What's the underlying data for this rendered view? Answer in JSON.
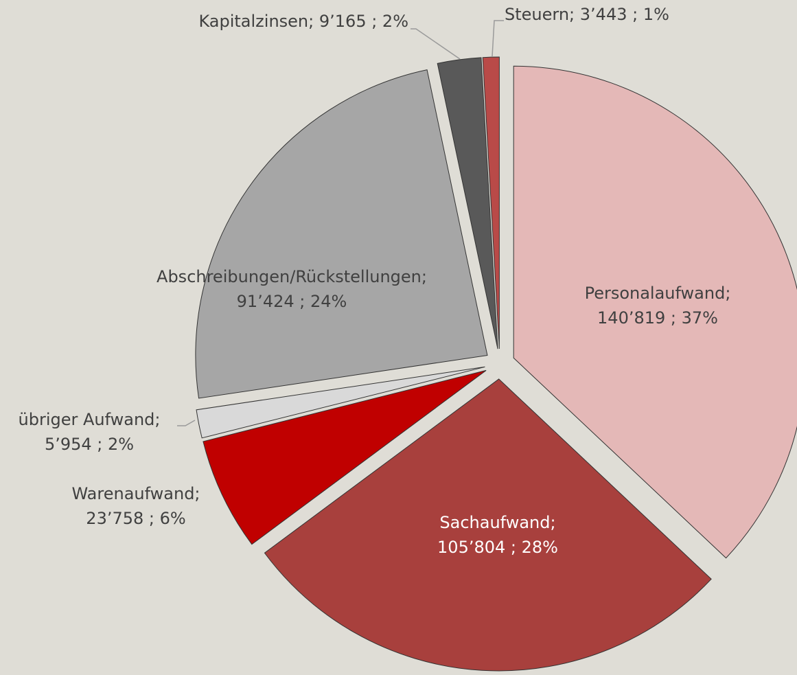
{
  "chart_data": {
    "type": "pie",
    "categories": [
      "Personalaufwand;",
      "Sachaufwand;",
      "Warenaufwand;",
      "übriger Aufwand;",
      "Abschreibungen/Rückstellungen;",
      "Kapitalzinsen;",
      "Steuern;"
    ],
    "values": [
      140819,
      105804,
      23758,
      5954,
      91424,
      9165,
      3443
    ],
    "value_labels": [
      "140’819 ; 37%",
      "105’804 ; 28%",
      "23’758 ; 6%",
      "5’954 ; 2%",
      "91’424 ; 24%",
      "9’165 ; 2%",
      "3’443 ; 1%"
    ],
    "colors": [
      "#e4b8b7",
      "#a8403d",
      "#c00000",
      "#d9d9d9",
      "#a6a6a6",
      "#595959",
      "#b94a48"
    ]
  }
}
